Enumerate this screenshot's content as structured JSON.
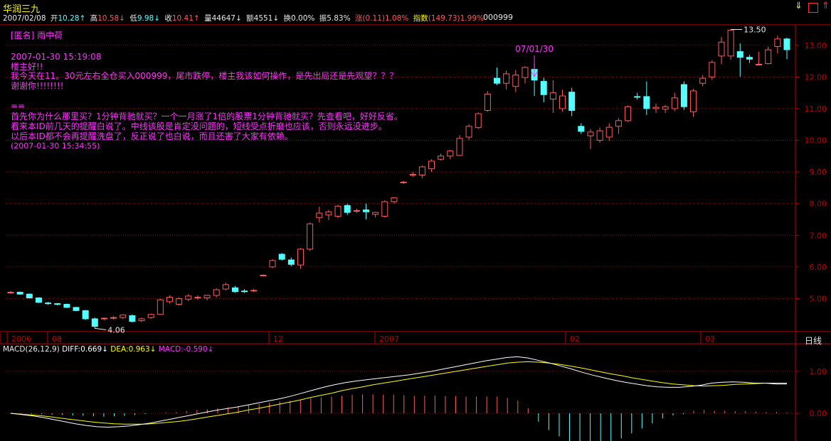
{
  "header": {
    "stock_name": "华润三九",
    "date": "2007/02/08",
    "open_label": "开",
    "open": "10.28",
    "high_label": "高",
    "high": "10.58",
    "low_label": "低",
    "low": "9.98",
    "close_label": "收",
    "close": "10.41",
    "volume_label": "量",
    "volume": "44647",
    "amount_label": "额",
    "amount": "4551",
    "turnover_label": "换",
    "turnover": "0.00%",
    "amplitude_label": "振",
    "amplitude": "5.83%",
    "change_label": "涨",
    "change": "(0.11)1.08%",
    "index_label": "指数",
    "index": "(149.73)1.99%",
    "code": "000999"
  },
  "annotations": {
    "post_author": "[匿名] 雨中荷",
    "post_time": "2007-01-30 15:19:08",
    "post_line1": "楼主好!!",
    "post_line2": "我今天在11。30元左右全仓买入000999，尾市跌停，楼主我该如何操作，是先出局还是先观望？？？",
    "post_line3": "谢谢你!!!!!!!!",
    "separator": "==",
    "reply_line1": "首先你为什么那里买？1分钟背驰就买？一个一月涨了1倍的股票1分钟背驰就买？先查看吧，好好反省。",
    "reply_line2": "看来本ID前几天的提醒白说了。中线该股是肯定没问题的，短线受点折磨也应该，否则永远没进步。",
    "reply_line3": "以后本ID都不会再提醒洗盘了，反正说了也白说，而且还害了大家有依赖。",
    "reply_time": "(2007-01-30 15:34:55)",
    "marker_date": "07/01/30",
    "high_marker": "13.50",
    "low_marker": "4.06"
  },
  "period_label": "日线",
  "macd_legend": {
    "macd_params": "MACD(26,12,9)",
    "diff_label": "DIFF:",
    "diff": "0.669",
    "dea_label": "DEA:",
    "dea": "0.963",
    "macd_label": "MACD:",
    "macd": "-0.590"
  },
  "colors": {
    "up": "#ff5a5a",
    "down": "#54ffff",
    "diff_line": "#ffffff",
    "dea_line": "#ffff00",
    "grid": "#a00000",
    "axis": "#c00000",
    "post_text": "#ff33ff"
  },
  "chart_data": [
    {
      "type": "candlestick",
      "title": "",
      "y_ticks": [
        "13.00",
        "12.00",
        "11.00",
        "10.00",
        "9.00",
        "8.00",
        "7.00",
        "6.00",
        "5.00"
      ],
      "ylim": [
        4.0,
        13.6
      ],
      "x_ticks": [
        "2006",
        "08",
        "12",
        "2007",
        "02",
        "03"
      ],
      "candles": [
        [
          5.18,
          5.24,
          5.15,
          5.2
        ],
        [
          5.2,
          5.22,
          5.12,
          5.14
        ],
        [
          5.14,
          5.16,
          5.0,
          5.02
        ],
        [
          5.02,
          5.04,
          4.86,
          4.88
        ],
        [
          4.86,
          4.9,
          4.8,
          4.84
        ],
        [
          4.84,
          4.86,
          4.78,
          4.82
        ],
        [
          4.82,
          4.84,
          4.7,
          4.72
        ],
        [
          4.72,
          4.74,
          4.6,
          4.62
        ],
        [
          4.62,
          4.64,
          4.32,
          4.36
        ],
        [
          4.36,
          4.4,
          4.06,
          4.12
        ],
        [
          4.36,
          4.4,
          4.32,
          4.38
        ],
        [
          4.38,
          4.44,
          4.34,
          4.4
        ],
        [
          4.4,
          4.5,
          4.36,
          4.48
        ],
        [
          4.46,
          4.5,
          4.24,
          4.28
        ],
        [
          4.3,
          4.4,
          4.26,
          4.36
        ],
        [
          4.4,
          4.52,
          4.36,
          4.5
        ],
        [
          4.5,
          5.0,
          4.48,
          4.96
        ],
        [
          4.9,
          5.1,
          4.84,
          5.04
        ],
        [
          4.82,
          5.04,
          4.78,
          5.0
        ],
        [
          4.98,
          5.14,
          4.92,
          5.08
        ],
        [
          5.02,
          5.1,
          4.96,
          5.04
        ],
        [
          5.02,
          5.12,
          4.94,
          5.1
        ],
        [
          5.1,
          5.32,
          5.04,
          5.28
        ],
        [
          5.3,
          5.5,
          5.26,
          5.44
        ],
        [
          5.34,
          5.4,
          5.18,
          5.22
        ],
        [
          5.24,
          5.3,
          5.18,
          5.22
        ],
        [
          5.24,
          5.3,
          5.2,
          5.26
        ],
        [
          5.72,
          5.76,
          5.7,
          5.74
        ],
        [
          6.0,
          6.24,
          5.96,
          6.2
        ],
        [
          6.4,
          6.44,
          6.2,
          6.24
        ],
        [
          6.22,
          6.3,
          6.02,
          6.08
        ],
        [
          6.06,
          6.6,
          5.94,
          6.56
        ],
        [
          6.56,
          7.4,
          6.5,
          7.36
        ],
        [
          7.56,
          7.9,
          7.4,
          7.7
        ],
        [
          7.64,
          7.8,
          7.48,
          7.74
        ],
        [
          7.6,
          7.96,
          7.54,
          7.92
        ],
        [
          7.94,
          8.0,
          7.64,
          7.72
        ],
        [
          7.76,
          7.84,
          7.7,
          7.78
        ],
        [
          7.8,
          8.0,
          7.5,
          7.74
        ],
        [
          7.66,
          7.74,
          7.56,
          7.72
        ],
        [
          7.6,
          8.1,
          7.56,
          8.06
        ],
        [
          8.06,
          8.2,
          8.0,
          8.18
        ],
        [
          8.66,
          8.72,
          8.62,
          8.68
        ],
        [
          8.9,
          9.0,
          8.84,
          8.92
        ],
        [
          8.9,
          9.2,
          8.8,
          9.16
        ],
        [
          9.1,
          9.4,
          9.0,
          9.34
        ],
        [
          9.4,
          9.58,
          9.36,
          9.5
        ],
        [
          9.5,
          9.7,
          9.4,
          9.66
        ],
        [
          9.52,
          10.16,
          9.5,
          10.06
        ],
        [
          10.1,
          10.5,
          10.0,
          10.44
        ],
        [
          10.4,
          10.88,
          10.36,
          10.84
        ],
        [
          10.94,
          11.56,
          10.9,
          11.46
        ],
        [
          11.96,
          12.3,
          11.74,
          11.8
        ],
        [
          11.8,
          12.2,
          11.6,
          12.1
        ],
        [
          11.7,
          12.22,
          11.52,
          12.06
        ],
        [
          11.98,
          12.34,
          11.8,
          12.3
        ],
        [
          12.24,
          12.42,
          11.4,
          11.9
        ],
        [
          11.86,
          11.98,
          11.2,
          11.44
        ],
        [
          11.3,
          11.9,
          10.86,
          11.5
        ],
        [
          11.0,
          11.6,
          10.9,
          11.4
        ],
        [
          11.52,
          11.66,
          10.76,
          10.94
        ],
        [
          10.44,
          10.54,
          10.2,
          10.28
        ],
        [
          10.14,
          10.36,
          9.72,
          10.26
        ],
        [
          10.0,
          10.4,
          9.92,
          10.3
        ],
        [
          10.1,
          10.54,
          9.98,
          10.41
        ],
        [
          10.44,
          10.7,
          10.2,
          10.62
        ],
        [
          10.62,
          11.1,
          10.58,
          11.06
        ],
        [
          11.38,
          11.5,
          11.28,
          11.36
        ],
        [
          11.38,
          11.86,
          10.8,
          11.0
        ],
        [
          11.0,
          11.16,
          10.86,
          11.04
        ],
        [
          10.98,
          11.12,
          10.86,
          11.06
        ],
        [
          11.0,
          11.5,
          10.92,
          11.34
        ],
        [
          11.76,
          11.86,
          10.96,
          11.06
        ],
        [
          10.9,
          11.62,
          10.74,
          11.56
        ],
        [
          11.8,
          12.06,
          11.7,
          11.96
        ],
        [
          12.0,
          12.52,
          11.9,
          12.46
        ],
        [
          12.66,
          13.26,
          12.4,
          13.1
        ],
        [
          12.66,
          13.5,
          12.54,
          13.48
        ],
        [
          12.8,
          13.06,
          12.0,
          12.62
        ],
        [
          12.62,
          12.7,
          12.44,
          12.56
        ],
        [
          12.4,
          12.8,
          12.36,
          12.4
        ],
        [
          12.42,
          12.96,
          12.4,
          12.86
        ],
        [
          12.96,
          13.3,
          12.74,
          13.2
        ],
        [
          13.2,
          13.24,
          12.56,
          12.86
        ]
      ]
    },
    {
      "type": "line",
      "title": "",
      "y_ticks": [
        "1.00",
        "0.00"
      ],
      "ylim": [
        -0.75,
        1.75
      ],
      "series": [
        {
          "name": "DIFF",
          "values": [
            0,
            -0.03,
            -0.06,
            -0.1,
            -0.15,
            -0.2,
            -0.25,
            -0.29,
            -0.32,
            -0.33,
            -0.32,
            -0.3,
            -0.27,
            -0.23,
            -0.18,
            -0.13,
            -0.08,
            -0.03,
            0.02,
            0.07,
            0.11,
            0.15,
            0.2,
            0.25,
            0.3,
            0.35,
            0.41,
            0.48,
            0.55,
            0.62,
            0.68,
            0.73,
            0.77,
            0.8,
            0.83,
            0.86,
            0.89,
            0.92,
            0.96,
            1,
            1.05,
            1.1,
            1.15,
            1.2,
            1.25,
            1.29,
            1.33,
            1.35,
            1.32,
            1.26,
            1.2,
            1.13,
            1.06,
            0.98,
            0.91,
            0.85,
            0.79,
            0.74,
            0.7,
            0.66,
            0.63,
            0.62,
            0.62,
            0.64,
            0.67,
            0.72,
            0.74,
            0.75,
            0.74,
            0.72,
            0.72,
            0.7,
            0.7
          ]
        },
        {
          "name": "DEA",
          "values": [
            0,
            -0.02,
            -0.04,
            -0.06,
            -0.09,
            -0.12,
            -0.15,
            -0.18,
            -0.21,
            -0.23,
            -0.25,
            -0.26,
            -0.26,
            -0.26,
            -0.24,
            -0.22,
            -0.2,
            -0.17,
            -0.13,
            -0.09,
            -0.05,
            -0.01,
            0.03,
            0.08,
            0.12,
            0.17,
            0.22,
            0.27,
            0.32,
            0.38,
            0.43,
            0.48,
            0.54,
            0.59,
            0.63,
            0.68,
            0.72,
            0.76,
            0.8,
            0.84,
            0.88,
            0.92,
            0.96,
            1,
            1.04,
            1.08,
            1.12,
            1.16,
            1.2,
            1.22,
            1.23,
            1.22,
            1.2,
            1.17,
            1.13,
            1.09,
            1.04,
            0.99,
            0.94,
            0.9,
            0.85,
            0.81,
            0.77,
            0.73,
            0.7,
            0.68,
            0.66,
            0.65,
            0.66,
            0.67,
            0.69,
            0.7,
            0.71,
            0.72,
            0.72,
            0.72
          ]
        },
        {
          "name": "MACD",
          "values": [
            -0.01,
            -0.01,
            -0.02,
            -0.02,
            -0.03,
            -0.04,
            -0.05,
            -0.06,
            -0.07,
            -0.08,
            -0.07,
            -0.06,
            -0.04,
            -0.02,
            0,
            0.02,
            0.03,
            0.05,
            0.08,
            0.1,
            0.12,
            0.14,
            0.17,
            0.2,
            0.22,
            0.25,
            0.28,
            0.3,
            0.33,
            0.36,
            0.38,
            0.4,
            0.42,
            0.44,
            0.45,
            0.45,
            0.44,
            0.44,
            0.43,
            0.42,
            0.42,
            0.42,
            0.41,
            0.41,
            0.4,
            0.4,
            0.4,
            0.4,
            0.37,
            0.3,
            0.12,
            -0.2,
            -0.4,
            -0.55,
            -0.7,
            -0.78,
            -0.82,
            -0.8,
            -0.72,
            -0.6,
            -0.48,
            -0.36,
            -0.24,
            -0.12,
            -0.05,
            -0.02,
            0.06,
            0.08,
            0.06,
            0.06,
            0.05,
            0.05,
            0.04,
            0.03,
            0.03,
            0.02
          ]
        }
      ]
    }
  ]
}
